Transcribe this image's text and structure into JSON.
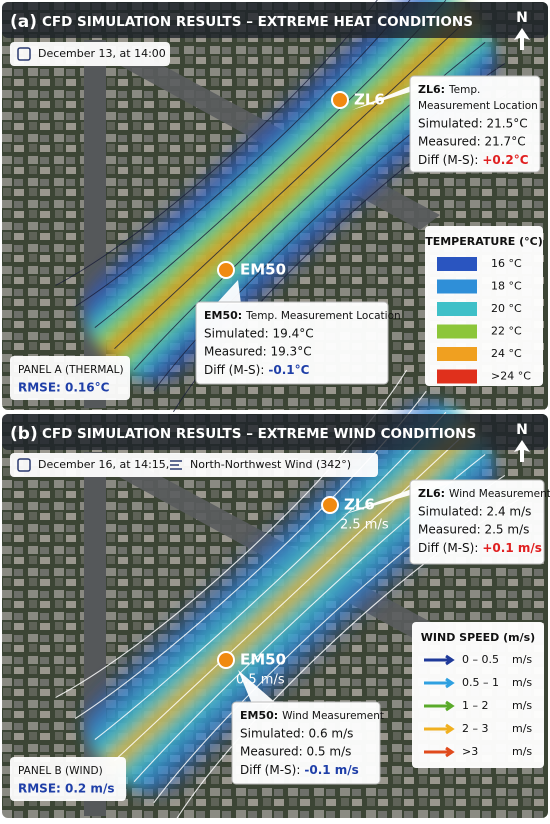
{
  "panels": [
    {
      "label": "(a)",
      "title": "CFD SIMULATION RESULTS – EXTREME HEAT CONDITIONS",
      "north": "N",
      "date": "December 13, at 14:00",
      "stations": [
        {
          "name": "ZL6",
          "callout_title": "ZL6:",
          "callout_subtitle": [
            "Temp.",
            "Measurement Location"
          ],
          "rows": [
            "Simulated: 21.5°C",
            "Measured: 21.7°C"
          ],
          "diff_label": "Diff (M-S):",
          "diff": "+0.2°C",
          "diff_color": "#e02020"
        },
        {
          "name": "EM50",
          "callout_title": "EM50:",
          "callout_subtitle": [
            "Temp. Measurement Location"
          ],
          "rows": [
            "Simulated: 19.4°C",
            "Measured: 19.3°C"
          ],
          "diff_label": "Diff (M-S):",
          "diff": "-0.1°C",
          "diff_color": "#1f3fa8"
        }
      ],
      "legend": {
        "title": "TEMPERATURE (°C)",
        "items": [
          {
            "label": "16 °C",
            "color": "#2a55c0"
          },
          {
            "label": "18 °C",
            "color": "#2f8fd8"
          },
          {
            "label": "20 °C",
            "color": "#3fc0c8"
          },
          {
            "label": "22 °C",
            "color": "#8cc63a"
          },
          {
            "label": "24 °C",
            "color": "#f0a020"
          },
          {
            "label": ">24 °C",
            "color": "#e0301c"
          }
        ]
      },
      "footer": {
        "name": "PANEL A (THERMAL)",
        "rmse": "RMSE: 0.16°C"
      }
    },
    {
      "label": "(b)",
      "title": "CFD SIMULATION RESULTS – EXTREME WIND CONDITIONS",
      "north": "N",
      "date": "December 16, at 14:15,",
      "wind": "North-Northwest Wind (342°)",
      "stations": [
        {
          "name": "ZL6",
          "speed": "2.5 m/s",
          "callout_title": "ZL6:",
          "callout_subtitle": [
            "Wind Measurement"
          ],
          "rows": [
            "Simulated: 2.4 m/s",
            "Measured: 2.5 m/s"
          ],
          "diff_label": "Diff (M-S):",
          "diff": "+0.1 m/s",
          "diff_color": "#e02020"
        },
        {
          "name": "EM50",
          "speed": "0.5 m/s",
          "callout_title": "EM50:",
          "callout_subtitle": [
            "Wind Measurement"
          ],
          "rows": [
            "Simulated: 0.6 m/s",
            "Measured: 0.5 m/s"
          ],
          "diff_label": "Diff (M-S):",
          "diff": "-0.1 m/s",
          "diff_color": "#1f3fa8"
        }
      ],
      "legend": {
        "title": "WIND SPEED (m/s)",
        "items": [
          {
            "label": "0 – 0.5",
            "unit": "m/s",
            "color": "#1f3a9a"
          },
          {
            "label": "0.5 – 1",
            "unit": "m/s",
            "color": "#2fa0e0"
          },
          {
            "label": "1 – 2",
            "unit": "m/s",
            "color": "#5aaa2a"
          },
          {
            "label": "2 – 3",
            "unit": "m/s",
            "color": "#f0b020"
          },
          {
            "label": ">3",
            "unit": "m/s",
            "color": "#e04a1c"
          }
        ]
      },
      "footer": {
        "name": "PANEL B (WIND)",
        "rmse": "RMSE: 0.2 m/s"
      }
    }
  ]
}
